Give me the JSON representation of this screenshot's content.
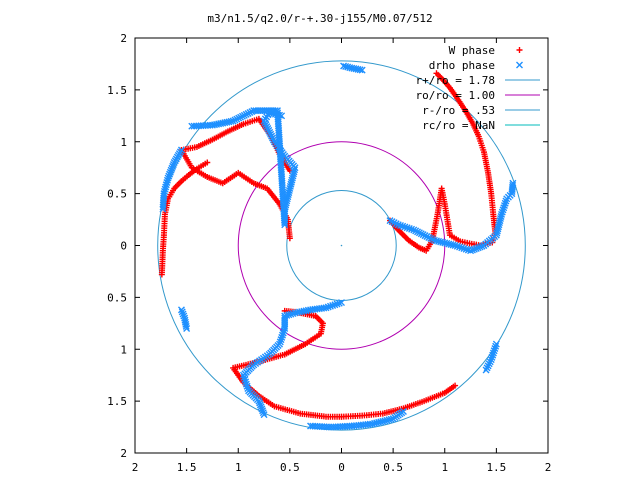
{
  "chart_data": {
    "type": "scatter",
    "title": "m3/n1.5/q2.0/r-+.30-j155/M0.07/512",
    "xlim": [
      -2,
      2
    ],
    "ylim": [
      -2,
      2
    ],
    "x_tick_labels": [
      "2",
      "1.5",
      "1",
      "0.5",
      "0",
      "0.5",
      "1",
      "1.5",
      "2"
    ],
    "y_tick_labels": [
      "2",
      "1.5",
      "1",
      "0.5",
      "0",
      "0.5",
      "1",
      "1.5",
      "2"
    ],
    "grid": false,
    "legend_position": "top-right",
    "legend": [
      {
        "label": "W phase",
        "kind": "point",
        "symbol": "+",
        "color": "#ff0000"
      },
      {
        "label": "drho phase",
        "kind": "point",
        "symbol": "x",
        "color": "#1e90ff"
      },
      {
        "label": "r+/ro = 1.78",
        "kind": "circle",
        "radius": 1.78,
        "color": "#3399cc"
      },
      {
        "label": "ro/ro = 1.00",
        "kind": "circle",
        "radius": 1.0,
        "color": "#b000b0"
      },
      {
        "label": "r-/ro = .53",
        "kind": "circle",
        "radius": 0.53,
        "color": "#3399cc"
      },
      {
        "label": "rc/ro = NaN",
        "kind": "circle",
        "radius": null,
        "color": "#00bbbb"
      }
    ],
    "series": [
      {
        "name": "W phase",
        "color": "#ff0000",
        "arms": [
          [
            [
              1.46,
              0.03
            ],
            [
              1.49,
              0.12
            ],
            [
              1.47,
              0.3
            ],
            [
              1.45,
              0.5
            ],
            [
              1.42,
              0.7
            ],
            [
              1.38,
              0.9
            ],
            [
              1.33,
              1.05
            ],
            [
              1.27,
              1.18
            ],
            [
              1.2,
              1.3
            ],
            [
              1.12,
              1.42
            ],
            [
              1.05,
              1.52
            ],
            [
              0.98,
              1.6
            ],
            [
              0.92,
              1.66
            ]
          ],
          [
            [
              1.46,
              0.03
            ],
            [
              1.35,
              0.0
            ],
            [
              1.24,
              0.02
            ],
            [
              1.15,
              0.04
            ],
            [
              1.05,
              0.1
            ],
            [
              1.0,
              0.4
            ],
            [
              0.97,
              0.55
            ],
            [
              0.93,
              0.3
            ],
            [
              0.88,
              0.05
            ],
            [
              0.82,
              -0.05
            ],
            [
              0.75,
              -0.02
            ],
            [
              0.65,
              0.05
            ],
            [
              0.55,
              0.15
            ],
            [
              0.47,
              0.24
            ]
          ],
          [
            [
              -0.5,
              0.07
            ],
            [
              -0.52,
              0.25
            ],
            [
              -0.6,
              0.4
            ],
            [
              -0.72,
              0.55
            ],
            [
              -0.85,
              0.6
            ],
            [
              -1.0,
              0.7
            ],
            [
              -1.15,
              0.6
            ],
            [
              -1.3,
              0.66
            ],
            [
              -1.45,
              0.75
            ],
            [
              -1.55,
              0.92
            ],
            [
              -1.4,
              0.95
            ],
            [
              -1.25,
              1.02
            ],
            [
              -1.1,
              1.1
            ],
            [
              -0.95,
              1.17
            ],
            [
              -0.8,
              1.22
            ],
            [
              -0.68,
              1.05
            ],
            [
              -0.6,
              0.88
            ],
            [
              -0.5,
              0.72
            ]
          ],
          [
            [
              -1.74,
              -0.28
            ],
            [
              -1.73,
              -0.05
            ],
            [
              -1.72,
              0.1
            ],
            [
              -1.71,
              0.3
            ],
            [
              -1.68,
              0.45
            ],
            [
              -1.62,
              0.55
            ],
            [
              -1.55,
              0.62
            ],
            [
              -1.48,
              0.68
            ],
            [
              -1.4,
              0.74
            ],
            [
              -1.3,
              0.8
            ]
          ],
          [
            [
              -0.55,
              -0.63
            ],
            [
              -0.45,
              -0.64
            ],
            [
              -0.35,
              -0.66
            ],
            [
              -0.25,
              -0.68
            ],
            [
              -0.18,
              -0.75
            ],
            [
              -0.2,
              -0.85
            ],
            [
              -0.35,
              -0.95
            ],
            [
              -0.55,
              -1.05
            ],
            [
              -0.8,
              -1.12
            ],
            [
              -1.05,
              -1.18
            ],
            [
              -0.95,
              -1.32
            ],
            [
              -0.8,
              -1.45
            ],
            [
              -0.65,
              -1.55
            ],
            [
              -0.4,
              -1.62
            ],
            [
              -0.15,
              -1.65
            ],
            [
              0.0,
              -1.65
            ]
          ],
          [
            [
              0.0,
              -1.65
            ],
            [
              0.2,
              -1.64
            ],
            [
              0.4,
              -1.62
            ],
            [
              0.6,
              -1.57
            ],
            [
              0.8,
              -1.5
            ],
            [
              1.0,
              -1.42
            ],
            [
              1.1,
              -1.35
            ]
          ]
        ]
      },
      {
        "name": "drho phase",
        "color": "#1e90ff",
        "arms": [
          [
            [
              0.47,
              0.24
            ],
            [
              0.55,
              0.2
            ],
            [
              0.7,
              0.15
            ],
            [
              0.9,
              0.05
            ],
            [
              1.1,
              0.0
            ],
            [
              1.25,
              -0.05
            ],
            [
              1.38,
              0.0
            ],
            [
              1.5,
              0.1
            ],
            [
              1.55,
              0.3
            ],
            [
              1.6,
              0.45
            ],
            [
              1.65,
              0.5
            ],
            [
              1.66,
              0.6
            ]
          ],
          [
            [
              -0.58,
              1.25
            ],
            [
              -0.7,
              1.28
            ],
            [
              -0.75,
              1.2
            ],
            [
              -0.65,
              1.0
            ],
            [
              -0.55,
              0.86
            ],
            [
              -0.45,
              0.75
            ],
            [
              -0.5,
              0.55
            ],
            [
              -0.55,
              0.35
            ],
            [
              -0.55,
              0.2
            ],
            [
              -0.62,
              1.3
            ],
            [
              -0.85,
              1.3
            ],
            [
              -1.05,
              1.2
            ],
            [
              -1.25,
              1.16
            ],
            [
              -1.45,
              1.15
            ]
          ],
          [
            [
              -1.55,
              0.92
            ],
            [
              -1.62,
              0.8
            ],
            [
              -1.68,
              0.65
            ],
            [
              -1.72,
              0.5
            ],
            [
              -1.73,
              0.35
            ]
          ],
          [
            [
              0.0,
              -0.55
            ],
            [
              -0.15,
              -0.6
            ],
            [
              -0.3,
              -0.62
            ],
            [
              -0.45,
              -0.65
            ],
            [
              -0.55,
              -0.68
            ],
            [
              -0.55,
              -0.8
            ],
            [
              -0.6,
              -0.95
            ],
            [
              -0.7,
              -1.05
            ],
            [
              -0.85,
              -1.15
            ],
            [
              -0.95,
              -1.25
            ],
            [
              -0.9,
              -1.4
            ],
            [
              -0.8,
              -1.5
            ],
            [
              -0.75,
              -1.63
            ]
          ],
          [
            [
              -1.55,
              -0.62
            ],
            [
              -1.52,
              -0.7
            ],
            [
              -1.5,
              -0.8
            ]
          ],
          [
            [
              0.02,
              1.73
            ],
            [
              0.1,
              1.71
            ],
            [
              0.2,
              1.69
            ]
          ],
          [
            [
              -0.3,
              -1.74
            ],
            [
              -0.1,
              -1.75
            ],
            [
              0.1,
              -1.74
            ],
            [
              0.3,
              -1.72
            ],
            [
              0.5,
              -1.67
            ],
            [
              0.6,
              -1.6
            ]
          ],
          [
            [
              1.4,
              -1.2
            ],
            [
              1.45,
              -1.1
            ],
            [
              1.5,
              -0.95
            ]
          ]
        ]
      }
    ]
  }
}
